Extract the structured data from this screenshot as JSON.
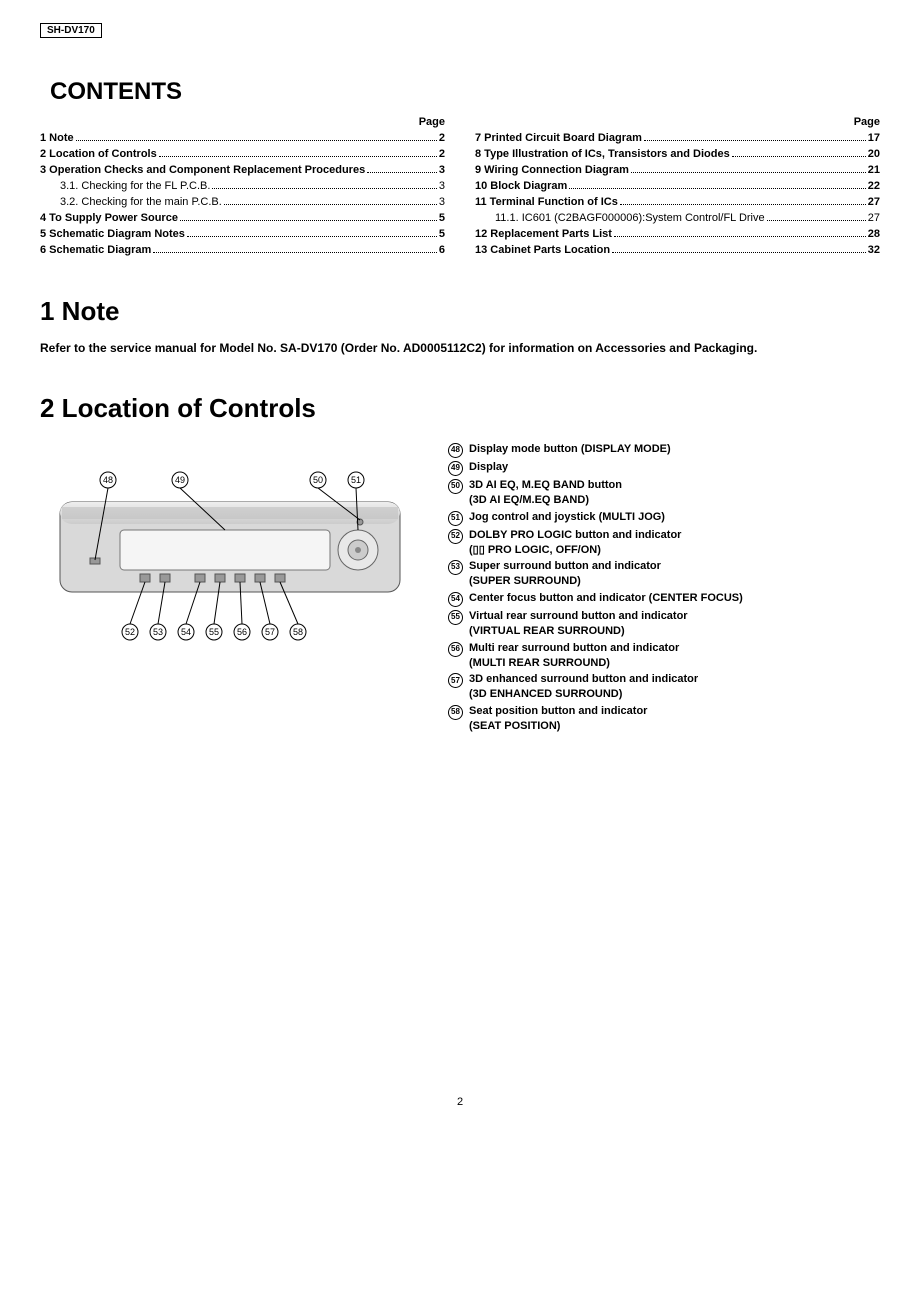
{
  "model": "SH-DV170",
  "contentsHeading": "CONTENTS",
  "pageHeader": "Page",
  "pageNumber": "2",
  "toc": {
    "left": [
      {
        "title": "1 Note",
        "page": "2",
        "sub": false
      },
      {
        "title": "2 Location of Controls",
        "page": "2",
        "sub": false
      },
      {
        "title": "3 Operation Checks and Component Replacement Procedures",
        "page": "3",
        "sub": false
      },
      {
        "title": "3.1. Checking for the FL P.C.B.",
        "page": "3",
        "sub": true
      },
      {
        "title": "3.2. Checking for the main P.C.B.",
        "page": "3",
        "sub": true
      },
      {
        "title": "4 To Supply Power Source",
        "page": "5",
        "sub": false
      },
      {
        "title": "5 Schematic Diagram Notes",
        "page": "5",
        "sub": false
      },
      {
        "title": "6 Schematic Diagram",
        "page": "6",
        "sub": false
      }
    ],
    "right": [
      {
        "title": "7 Printed Circuit Board Diagram",
        "page": "17",
        "sub": false
      },
      {
        "title": "8 Type Illustration of ICs, Transistors and Diodes",
        "page": "20",
        "sub": false
      },
      {
        "title": "9 Wiring Connection Diagram",
        "page": "21",
        "sub": false
      },
      {
        "title": "10 Block Diagram",
        "page": "22",
        "sub": false
      },
      {
        "title": "11 Terminal Function of ICs",
        "page": "27",
        "sub": false
      },
      {
        "title": "11.1. IC601 (C2BAGF000006):System Control/FL Drive",
        "page": "27",
        "sub": true
      },
      {
        "title": "12 Replacement Parts List",
        "page": "28",
        "sub": false
      },
      {
        "title": "13 Cabinet Parts Location",
        "page": "32",
        "sub": false
      }
    ]
  },
  "noteHeading": "1   Note",
  "noteBody": "Refer to the service manual for Model No. SA-DV170 (Order No. AD0005112C2) for information on Accessories and Packaging.",
  "locHeading": "2   Location of Controls",
  "calloutsTop": [
    "48",
    "49",
    "50",
    "51"
  ],
  "calloutsBottom": [
    "52",
    "53",
    "54",
    "55",
    "56",
    "57",
    "58"
  ],
  "locItems": [
    {
      "n": "48",
      "label": "Display mode button (DISPLAY MODE)"
    },
    {
      "n": "49",
      "label": "Display"
    },
    {
      "n": "50",
      "label": "3D AI EQ, M.EQ BAND button",
      "sub": "(3D AI EQ/M.EQ BAND)"
    },
    {
      "n": "51",
      "label": "Jog control and joystick (MULTI JOG)"
    },
    {
      "n": "52",
      "label": "DOLBY PRO LOGIC button and indicator",
      "sub": "(▯▯ PRO LOGIC, OFF/ON)"
    },
    {
      "n": "53",
      "label": "Super surround button and indicator",
      "sub": "(SUPER SURROUND)"
    },
    {
      "n": "54",
      "label": "Center focus button and indicator (CENTER FOCUS)"
    },
    {
      "n": "55",
      "label": "Virtual rear surround button and indicator",
      "sub": "(VIRTUAL REAR SURROUND)"
    },
    {
      "n": "56",
      "label": "Multi rear surround button and indicator",
      "sub": "(MULTI REAR SURROUND)"
    },
    {
      "n": "57",
      "label": "3D enhanced surround button and indicator",
      "sub": "(3D ENHANCED SURROUND)"
    },
    {
      "n": "58",
      "label": "Seat position button and indicator",
      "sub": "(SEAT POSITION)"
    }
  ]
}
